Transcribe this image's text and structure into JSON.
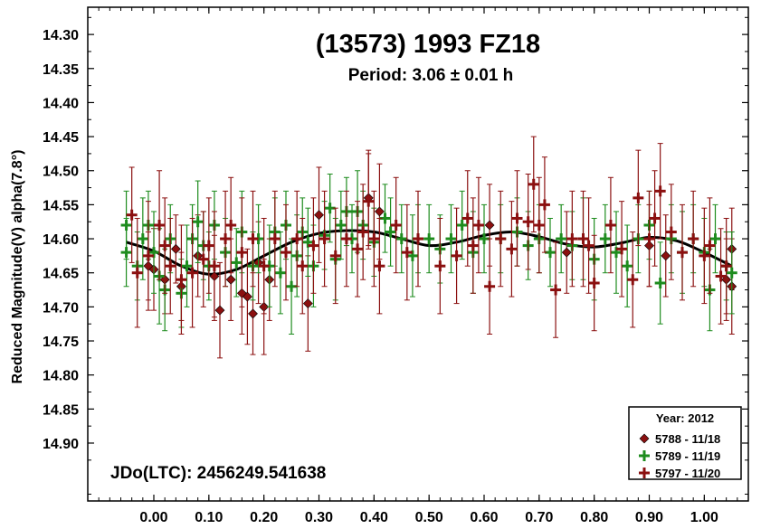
{
  "chart_data": {
    "type": "scatter",
    "title": "(13573) 1993 FZ18",
    "subtitle": "Period: 3.06 ± 0.01 h",
    "ylabel": "Reduced Magnitude(V) alpha(7.8°)",
    "xlabel": "",
    "annotation": "JDo(LTC): 2456249.541638",
    "xlim": [
      -0.12,
      1.08
    ],
    "ylim": [
      14.26,
      14.985
    ],
    "y_inverted": true,
    "x_ticks": [
      0.0,
      0.1,
      0.2,
      0.3,
      0.4,
      0.5,
      0.6,
      0.7,
      0.8,
      0.9,
      1.0
    ],
    "x_tick_labels": [
      "0.00",
      "0.10",
      "0.20",
      "0.30",
      "0.40",
      "0.50",
      "0.60",
      "0.70",
      "0.80",
      "0.90",
      "1.00"
    ],
    "y_ticks": [
      14.3,
      14.35,
      14.4,
      14.45,
      14.5,
      14.55,
      14.6,
      14.65,
      14.7,
      14.75,
      14.8,
      14.85,
      14.9
    ],
    "y_tick_labels": [
      "14.30",
      "14.35",
      "14.40",
      "14.45",
      "14.50",
      "14.55",
      "14.60",
      "14.65",
      "14.70",
      "14.75",
      "14.80",
      "14.85",
      "14.90"
    ],
    "legend": {
      "title": "Year: 2012",
      "position": "bottom-right"
    },
    "series": [
      {
        "name": "5788 - 11/18",
        "marker": "diamond",
        "color": "#8b1010",
        "points": [
          [
            -0.01,
            14.64,
            0.05
          ],
          [
            0.0,
            14.645,
            0.06
          ],
          [
            0.02,
            14.66,
            0.05
          ],
          [
            0.04,
            14.615,
            0.05
          ],
          [
            0.05,
            14.67,
            0.05
          ],
          [
            0.08,
            14.625,
            0.06
          ],
          [
            0.11,
            14.655,
            0.06
          ],
          [
            0.12,
            14.705,
            0.07
          ],
          [
            0.14,
            14.66,
            0.06
          ],
          [
            0.16,
            14.68,
            0.06
          ],
          [
            0.17,
            14.685,
            0.07
          ],
          [
            0.18,
            14.71,
            0.06
          ],
          [
            0.19,
            14.635,
            0.06
          ],
          [
            0.2,
            14.7,
            0.07
          ],
          [
            0.21,
            14.66,
            0.06
          ],
          [
            0.28,
            14.695,
            0.07
          ],
          [
            0.3,
            14.565,
            0.07
          ],
          [
            0.39,
            14.54,
            0.07
          ],
          [
            0.41,
            14.56,
            0.07
          ],
          [
            0.61,
            14.58,
            0.06
          ],
          [
            0.75,
            14.62,
            0.06
          ],
          [
            0.9,
            14.61,
            0.06
          ],
          [
            0.93,
            14.625,
            0.06
          ],
          [
            1.04,
            14.66,
            0.06
          ],
          [
            1.05,
            14.615,
            0.06
          ],
          [
            1.05,
            14.67,
            0.07
          ]
        ]
      },
      {
        "name": "5789 - 11/19",
        "marker": "plus",
        "color": "#1e8c1e",
        "points": [
          [
            -0.05,
            14.58,
            0.05
          ],
          [
            -0.05,
            14.62,
            0.05
          ],
          [
            -0.03,
            14.64,
            0.05
          ],
          [
            -0.02,
            14.6,
            0.06
          ],
          [
            -0.01,
            14.58,
            0.05
          ],
          [
            0.0,
            14.62,
            0.06
          ],
          [
            0.01,
            14.655,
            0.07
          ],
          [
            0.02,
            14.675,
            0.06
          ],
          [
            0.03,
            14.6,
            0.05
          ],
          [
            0.05,
            14.68,
            0.05
          ],
          [
            0.06,
            14.64,
            0.06
          ],
          [
            0.07,
            14.6,
            0.05
          ],
          [
            0.08,
            14.575,
            0.06
          ],
          [
            0.09,
            14.61,
            0.05
          ],
          [
            0.1,
            14.64,
            0.05
          ],
          [
            0.11,
            14.58,
            0.05
          ],
          [
            0.13,
            14.62,
            0.05
          ],
          [
            0.15,
            14.635,
            0.05
          ],
          [
            0.16,
            14.59,
            0.06
          ],
          [
            0.18,
            14.64,
            0.05
          ],
          [
            0.19,
            14.6,
            0.05
          ],
          [
            0.21,
            14.64,
            0.06
          ],
          [
            0.22,
            14.59,
            0.05
          ],
          [
            0.23,
            14.65,
            0.06
          ],
          [
            0.24,
            14.58,
            0.05
          ],
          [
            0.25,
            14.67,
            0.07
          ],
          [
            0.26,
            14.625,
            0.06
          ],
          [
            0.27,
            14.59,
            0.05
          ],
          [
            0.28,
            14.605,
            0.05
          ],
          [
            0.29,
            14.64,
            0.06
          ],
          [
            0.31,
            14.595,
            0.05
          ],
          [
            0.32,
            14.555,
            0.05
          ],
          [
            0.33,
            14.63,
            0.06
          ],
          [
            0.34,
            14.58,
            0.05
          ],
          [
            0.35,
            14.56,
            0.05
          ],
          [
            0.36,
            14.6,
            0.05
          ],
          [
            0.37,
            14.56,
            0.06
          ],
          [
            0.38,
            14.58,
            0.05
          ],
          [
            0.4,
            14.605,
            0.05
          ],
          [
            0.42,
            14.57,
            0.05
          ],
          [
            0.43,
            14.59,
            0.05
          ],
          [
            0.45,
            14.6,
            0.05
          ],
          [
            0.47,
            14.625,
            0.06
          ],
          [
            0.48,
            14.6,
            0.05
          ],
          [
            0.5,
            14.6,
            0.05
          ],
          [
            0.52,
            14.615,
            0.05
          ],
          [
            0.54,
            14.6,
            0.05
          ],
          [
            0.56,
            14.58,
            0.05
          ],
          [
            0.58,
            14.62,
            0.06
          ],
          [
            0.6,
            14.6,
            0.05
          ],
          [
            0.63,
            14.6,
            0.05
          ],
          [
            0.66,
            14.59,
            0.05
          ],
          [
            0.68,
            14.61,
            0.05
          ],
          [
            0.7,
            14.6,
            0.05
          ],
          [
            0.72,
            14.62,
            0.05
          ],
          [
            0.74,
            14.6,
            0.05
          ],
          [
            0.76,
            14.61,
            0.05
          ],
          [
            0.78,
            14.6,
            0.06
          ],
          [
            0.8,
            14.63,
            0.06
          ],
          [
            0.82,
            14.6,
            0.05
          ],
          [
            0.84,
            14.62,
            0.06
          ],
          [
            0.86,
            14.64,
            0.06
          ],
          [
            0.88,
            14.6,
            0.05
          ],
          [
            0.9,
            14.58,
            0.05
          ],
          [
            0.92,
            14.665,
            0.06
          ],
          [
            0.94,
            14.6,
            0.05
          ],
          [
            0.96,
            14.62,
            0.06
          ],
          [
            0.98,
            14.6,
            0.05
          ],
          [
            1.0,
            14.62,
            0.05
          ],
          [
            1.01,
            14.675,
            0.06
          ],
          [
            1.02,
            14.6,
            0.05
          ],
          [
            1.04,
            14.64,
            0.05
          ],
          [
            1.05,
            14.65,
            0.06
          ]
        ]
      },
      {
        "name": "5797 - 11/20",
        "marker": "plus",
        "color": "#8b1010",
        "points": [
          [
            -0.04,
            14.565,
            0.07
          ],
          [
            -0.03,
            14.65,
            0.08
          ],
          [
            -0.01,
            14.625,
            0.08
          ],
          [
            0.01,
            14.58,
            0.08
          ],
          [
            0.02,
            14.61,
            0.07
          ],
          [
            0.03,
            14.64,
            0.07
          ],
          [
            0.05,
            14.66,
            0.08
          ],
          [
            0.07,
            14.65,
            0.08
          ],
          [
            0.09,
            14.63,
            0.07
          ],
          [
            0.1,
            14.61,
            0.07
          ],
          [
            0.11,
            14.64,
            0.08
          ],
          [
            0.13,
            14.6,
            0.07
          ],
          [
            0.14,
            14.58,
            0.07
          ],
          [
            0.16,
            14.62,
            0.08
          ],
          [
            0.18,
            14.6,
            0.07
          ],
          [
            0.2,
            14.64,
            0.07
          ],
          [
            0.22,
            14.6,
            0.07
          ],
          [
            0.24,
            14.62,
            0.07
          ],
          [
            0.26,
            14.6,
            0.07
          ],
          [
            0.27,
            14.64,
            0.07
          ],
          [
            0.29,
            14.61,
            0.07
          ],
          [
            0.31,
            14.6,
            0.07
          ],
          [
            0.33,
            14.625,
            0.07
          ],
          [
            0.35,
            14.6,
            0.07
          ],
          [
            0.37,
            14.615,
            0.07
          ],
          [
            0.38,
            14.59,
            0.07
          ],
          [
            0.39,
            14.545,
            0.07
          ],
          [
            0.4,
            14.6,
            0.07
          ],
          [
            0.41,
            14.64,
            0.07
          ],
          [
            0.44,
            14.58,
            0.07
          ],
          [
            0.46,
            14.62,
            0.07
          ],
          [
            0.48,
            14.6,
            0.07
          ],
          [
            0.52,
            14.64,
            0.07
          ],
          [
            0.55,
            14.625,
            0.07
          ],
          [
            0.57,
            14.57,
            0.07
          ],
          [
            0.58,
            14.61,
            0.07
          ],
          [
            0.59,
            14.58,
            0.07
          ],
          [
            0.61,
            14.67,
            0.07
          ],
          [
            0.63,
            14.6,
            0.07
          ],
          [
            0.65,
            14.615,
            0.07
          ],
          [
            0.66,
            14.57,
            0.07
          ],
          [
            0.68,
            14.575,
            0.07
          ],
          [
            0.69,
            14.52,
            0.07
          ],
          [
            0.7,
            14.58,
            0.07
          ],
          [
            0.71,
            14.55,
            0.07
          ],
          [
            0.73,
            14.675,
            0.07
          ],
          [
            0.76,
            14.6,
            0.07
          ],
          [
            0.78,
            14.6,
            0.07
          ],
          [
            0.79,
            14.61,
            0.07
          ],
          [
            0.8,
            14.665,
            0.07
          ],
          [
            0.83,
            14.58,
            0.07
          ],
          [
            0.85,
            14.615,
            0.07
          ],
          [
            0.87,
            14.66,
            0.07
          ],
          [
            0.88,
            14.54,
            0.07
          ],
          [
            0.9,
            14.6,
            0.07
          ],
          [
            0.91,
            14.57,
            0.07
          ],
          [
            0.92,
            14.53,
            0.07
          ],
          [
            0.94,
            14.59,
            0.07
          ],
          [
            0.96,
            14.62,
            0.07
          ],
          [
            0.98,
            14.6,
            0.07
          ],
          [
            1.0,
            14.625,
            0.07
          ],
          [
            1.01,
            14.61,
            0.07
          ],
          [
            1.03,
            14.655,
            0.07
          ],
          [
            1.04,
            14.64,
            0.07
          ]
        ]
      }
    ],
    "fit_curve": {
      "color": "#000000",
      "points": [
        [
          -0.05,
          14.605
        ],
        [
          0.0,
          14.618
        ],
        [
          0.05,
          14.64
        ],
        [
          0.1,
          14.652
        ],
        [
          0.15,
          14.645
        ],
        [
          0.2,
          14.625
        ],
        [
          0.25,
          14.605
        ],
        [
          0.3,
          14.592
        ],
        [
          0.35,
          14.588
        ],
        [
          0.4,
          14.59
        ],
        [
          0.45,
          14.6
        ],
        [
          0.5,
          14.61
        ],
        [
          0.55,
          14.605
        ],
        [
          0.6,
          14.595
        ],
        [
          0.65,
          14.59
        ],
        [
          0.7,
          14.597
        ],
        [
          0.75,
          14.608
        ],
        [
          0.8,
          14.612
        ],
        [
          0.85,
          14.606
        ],
        [
          0.9,
          14.598
        ],
        [
          0.95,
          14.603
        ],
        [
          1.0,
          14.62
        ],
        [
          1.05,
          14.64
        ]
      ]
    }
  }
}
